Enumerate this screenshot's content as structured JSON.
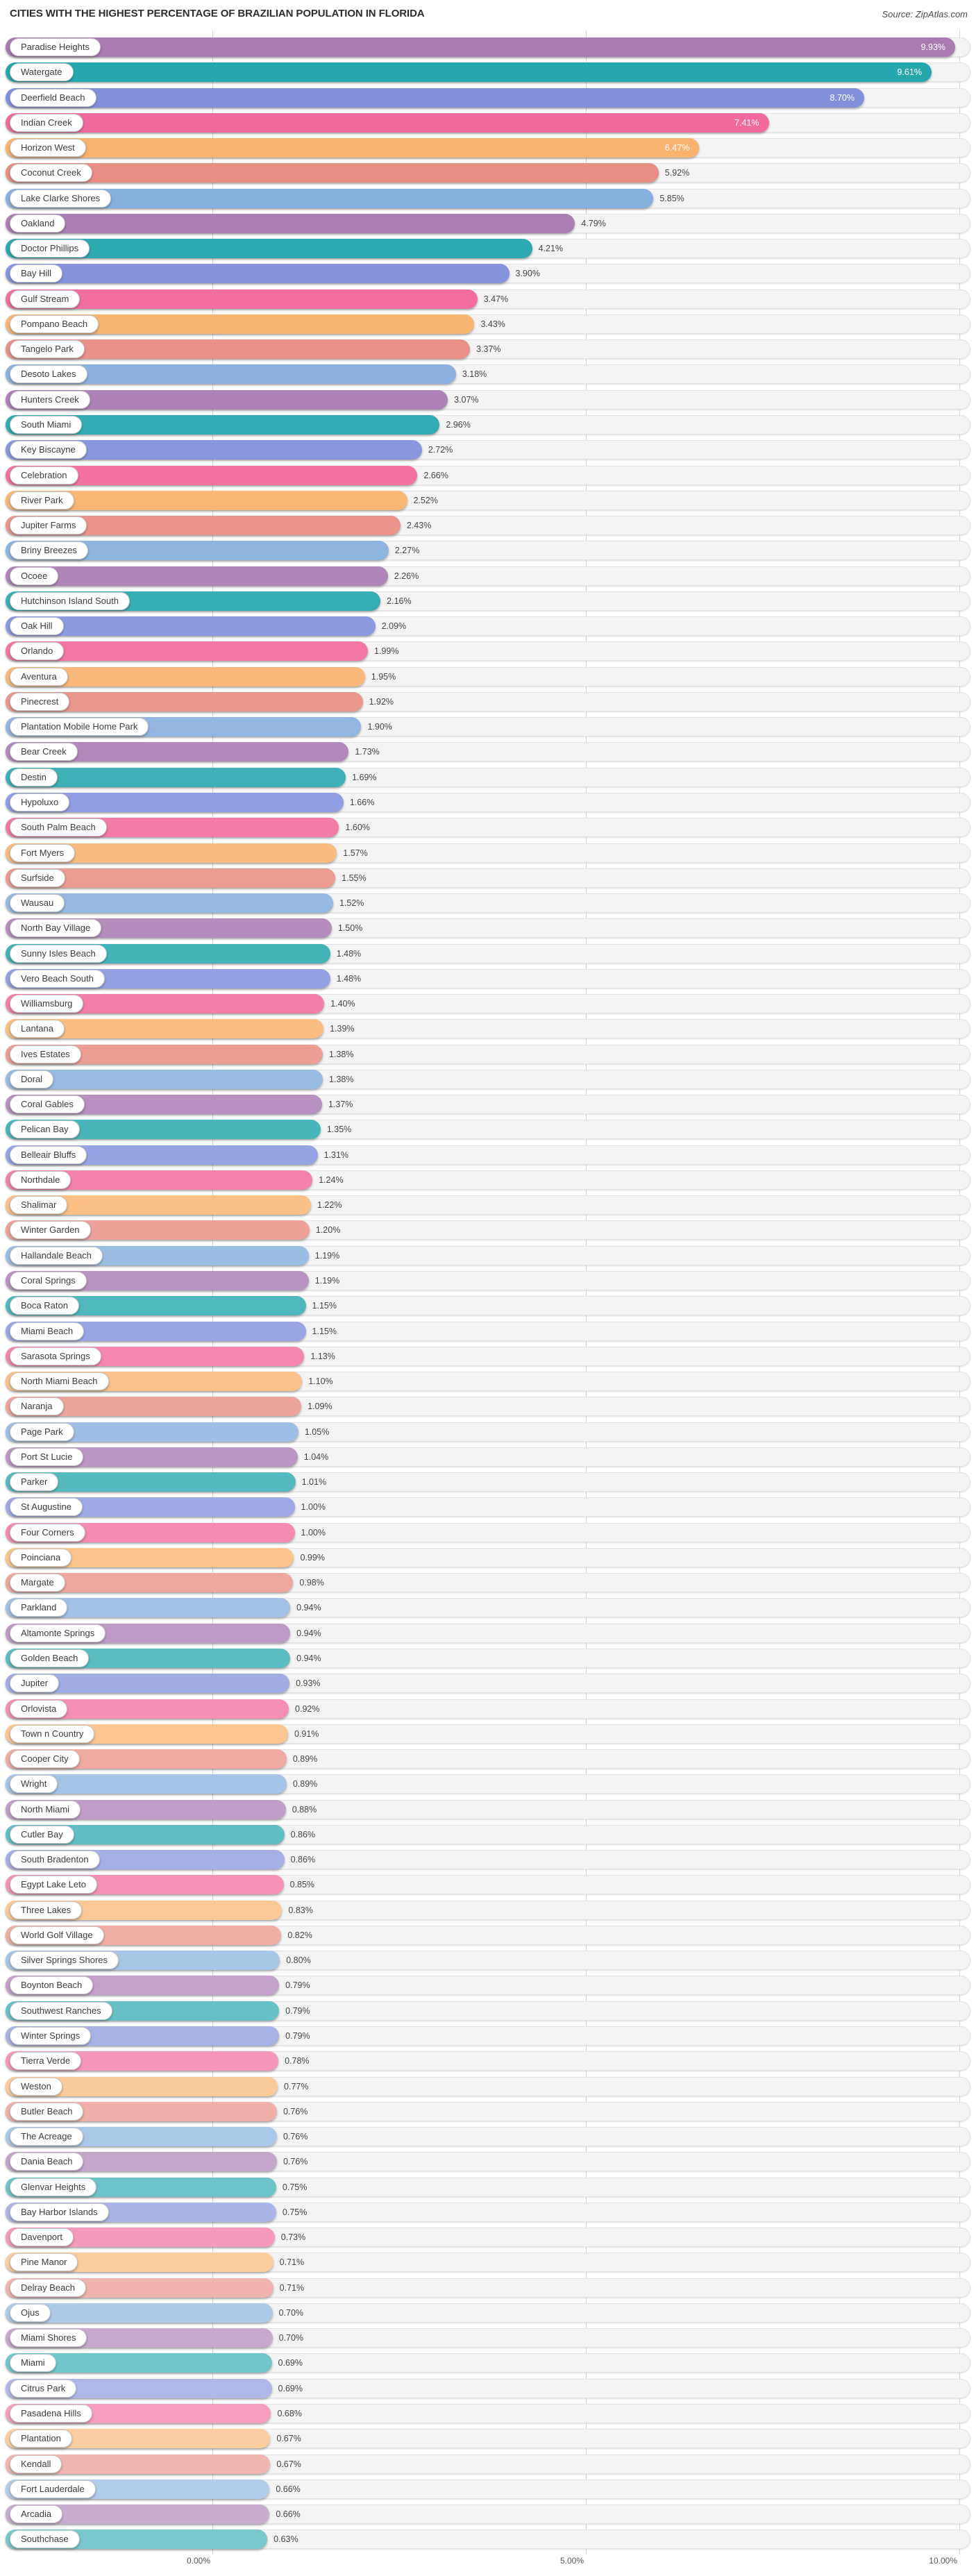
{
  "header": {
    "title": "CITIES WITH THE HIGHEST PERCENTAGE OF BRAZILIAN POPULATION IN FLORIDA",
    "source": "Source: ZipAtlas.com"
  },
  "style": {
    "palette": [
      "#a87bb2",
      "#25a7ad",
      "#8290dd",
      "#f2689c",
      "#f9b26c",
      "#e88c82",
      "#85aedd"
    ],
    "track_color": "#f4f4f5",
    "track_border": "#e2e2e4",
    "gridline_color": "#d4d4d6",
    "value_text_color": "#454545",
    "inside_value_text_color": "#ffffff",
    "fade_to_white_max": 0.38
  },
  "chart_data": {
    "type": "bar",
    "orientation": "horizontal",
    "title": "CITIES WITH THE HIGHEST PERCENTAGE OF BRAZILIAN POPULATION IN FLORIDA",
    "xlabel": "",
    "ylabel": "",
    "xlim": [
      0,
      10
    ],
    "x_ticks": [
      "0.00%",
      "5.00%",
      "10.00%"
    ],
    "legend": false,
    "grid": "vertical",
    "categories": [
      "Paradise Heights",
      "Watergate",
      "Deerfield Beach",
      "Indian Creek",
      "Horizon West",
      "Coconut Creek",
      "Lake Clarke Shores",
      "Oakland",
      "Doctor Phillips",
      "Bay Hill",
      "Gulf Stream",
      "Pompano Beach",
      "Tangelo Park",
      "Desoto Lakes",
      "Hunters Creek",
      "South Miami",
      "Key Biscayne",
      "Celebration",
      "River Park",
      "Jupiter Farms",
      "Briny Breezes",
      "Ocoee",
      "Hutchinson Island South",
      "Oak Hill",
      "Orlando",
      "Aventura",
      "Pinecrest",
      "Plantation Mobile Home Park",
      "Bear Creek",
      "Destin",
      "Hypoluxo",
      "South Palm Beach",
      "Fort Myers",
      "Surfside",
      "Wausau",
      "North Bay Village",
      "Sunny Isles Beach",
      "Vero Beach South",
      "Williamsburg",
      "Lantana",
      "Ives Estates",
      "Doral",
      "Coral Gables",
      "Pelican Bay",
      "Belleair Bluffs",
      "Northdale",
      "Shalimar",
      "Winter Garden",
      "Hallandale Beach",
      "Coral Springs",
      "Boca Raton",
      "Miami Beach",
      "Sarasota Springs",
      "North Miami Beach",
      "Naranja",
      "Page Park",
      "Port St Lucie",
      "Parker",
      "St Augustine",
      "Four Corners",
      "Poinciana",
      "Margate",
      "Parkland",
      "Altamonte Springs",
      "Golden Beach",
      "Jupiter",
      "Orlovista",
      "Town n Country",
      "Cooper City",
      "Wright",
      "North Miami",
      "Cutler Bay",
      "South Bradenton",
      "Egypt Lake Leto",
      "Three Lakes",
      "World Golf Village",
      "Silver Springs Shores",
      "Boynton Beach",
      "Southwest Ranches",
      "Winter Springs",
      "Tierra Verde",
      "Weston",
      "Butler Beach",
      "The Acreage",
      "Dania Beach",
      "Glenvar Heights",
      "Bay Harbor Islands",
      "Davenport",
      "Pine Manor",
      "Delray Beach",
      "Ojus",
      "Miami Shores",
      "Miami",
      "Citrus Park",
      "Pasadena Hills",
      "Plantation",
      "Kendall",
      "Fort Lauderdale",
      "Arcadia",
      "Southchase"
    ],
    "values": [
      9.93,
      9.61,
      8.7,
      7.41,
      6.47,
      5.92,
      5.85,
      4.79,
      4.21,
      3.9,
      3.47,
      3.43,
      3.37,
      3.18,
      3.07,
      2.96,
      2.72,
      2.66,
      2.52,
      2.43,
      2.27,
      2.26,
      2.16,
      2.09,
      1.99,
      1.95,
      1.92,
      1.9,
      1.73,
      1.69,
      1.66,
      1.6,
      1.57,
      1.55,
      1.52,
      1.5,
      1.48,
      1.48,
      1.4,
      1.39,
      1.38,
      1.38,
      1.37,
      1.35,
      1.31,
      1.24,
      1.22,
      1.2,
      1.19,
      1.19,
      1.15,
      1.15,
      1.13,
      1.1,
      1.09,
      1.05,
      1.04,
      1.01,
      1.0,
      1.0,
      0.99,
      0.98,
      0.94,
      0.94,
      0.94,
      0.93,
      0.92,
      0.91,
      0.89,
      0.89,
      0.88,
      0.86,
      0.86,
      0.85,
      0.83,
      0.82,
      0.8,
      0.79,
      0.79,
      0.79,
      0.78,
      0.77,
      0.76,
      0.76,
      0.76,
      0.75,
      0.75,
      0.73,
      0.71,
      0.71,
      0.7,
      0.7,
      0.69,
      0.69,
      0.68,
      0.67,
      0.67,
      0.66,
      0.66,
      0.63
    ],
    "value_labels": [
      "9.93%",
      "9.61%",
      "8.70%",
      "7.41%",
      "6.47%",
      "5.92%",
      "5.85%",
      "4.79%",
      "4.21%",
      "3.90%",
      "3.47%",
      "3.43%",
      "3.37%",
      "3.18%",
      "3.07%",
      "2.96%",
      "2.72%",
      "2.66%",
      "2.52%",
      "2.43%",
      "2.27%",
      "2.26%",
      "2.16%",
      "2.09%",
      "1.99%",
      "1.95%",
      "1.92%",
      "1.90%",
      "1.73%",
      "1.69%",
      "1.66%",
      "1.60%",
      "1.57%",
      "1.55%",
      "1.52%",
      "1.50%",
      "1.48%",
      "1.48%",
      "1.40%",
      "1.39%",
      "1.38%",
      "1.38%",
      "1.37%",
      "1.35%",
      "1.31%",
      "1.24%",
      "1.22%",
      "1.20%",
      "1.19%",
      "1.19%",
      "1.15%",
      "1.15%",
      "1.13%",
      "1.10%",
      "1.09%",
      "1.05%",
      "1.04%",
      "1.01%",
      "1.00%",
      "1.00%",
      "0.99%",
      "0.98%",
      "0.94%",
      "0.94%",
      "0.94%",
      "0.93%",
      "0.92%",
      "0.91%",
      "0.89%",
      "0.89%",
      "0.88%",
      "0.86%",
      "0.86%",
      "0.85%",
      "0.83%",
      "0.82%",
      "0.80%",
      "0.79%",
      "0.79%",
      "0.79%",
      "0.78%",
      "0.77%",
      "0.76%",
      "0.76%",
      "0.76%",
      "0.75%",
      "0.75%",
      "0.73%",
      "0.71%",
      "0.71%",
      "0.70%",
      "0.70%",
      "0.69%",
      "0.69%",
      "0.68%",
      "0.67%",
      "0.67%",
      "0.66%",
      "0.66%",
      "0.63%"
    ]
  }
}
